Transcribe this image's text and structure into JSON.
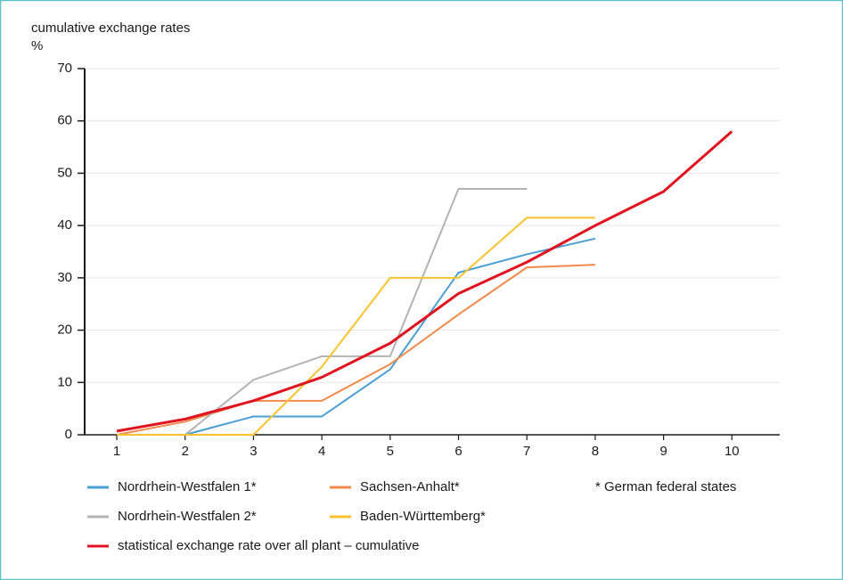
{
  "chart_data": {
    "type": "line",
    "title": "cumulative exchange rates",
    "y_label": "%",
    "note": "* German federal states",
    "x": [
      1,
      2,
      3,
      4,
      5,
      6,
      7,
      8,
      9,
      10
    ],
    "xlim": [
      0.53,
      10.7
    ],
    "xticks": [
      1,
      2,
      3,
      4,
      5,
      6,
      7,
      8,
      9,
      10
    ],
    "ylim": [
      0,
      70
    ],
    "yticks": [
      0,
      10,
      20,
      30,
      40,
      50,
      60,
      70
    ],
    "grid": true,
    "series": [
      {
        "name": "Nordrhein-Westfalen 1*",
        "color": "#4a9fd4",
        "values": [
          0,
          0,
          3.5,
          3.5,
          12.5,
          31,
          34.5,
          37.5,
          null,
          null
        ]
      },
      {
        "name": "Sachsen-Anhalt*",
        "color": "#f08a4b",
        "values": [
          0,
          2.5,
          6.5,
          6.5,
          13.5,
          23,
          32,
          32.5,
          null,
          null
        ]
      },
      {
        "name": "Nordrhein-Westfalen 2*",
        "color": "#b3b3b3",
        "values": [
          0,
          0,
          10.5,
          15,
          15,
          47,
          47,
          null,
          null,
          null
        ]
      },
      {
        "name": "Baden-Württemberg*",
        "color": "#f9c22e",
        "values": [
          0,
          0,
          0,
          13,
          30,
          30,
          41.5,
          41.5,
          null,
          null
        ]
      },
      {
        "name": "statistical exchange rate over all plant – cumulative",
        "color": "#e0141e",
        "values": [
          0.7,
          3,
          6.5,
          11,
          17.5,
          27,
          33,
          40,
          46.5,
          58
        ]
      }
    ]
  }
}
